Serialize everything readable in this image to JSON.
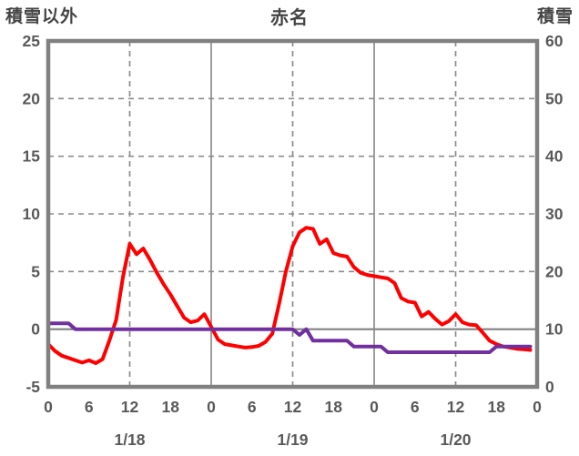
{
  "chart_data": {
    "type": "line",
    "title": "赤名",
    "left_axis": {
      "label": "積雪以外",
      "min": -5,
      "max": 25,
      "ticks": [
        25,
        20,
        15,
        10,
        5,
        0,
        -5
      ]
    },
    "right_axis": {
      "label": "積雪",
      "min": 0,
      "max": 60,
      "ticks": [
        60,
        50,
        40,
        30,
        20,
        10,
        0
      ]
    },
    "x_axis": {
      "total_hours": 72,
      "tick_step_hours": 6,
      "tick_labels": [
        "0",
        "6",
        "12",
        "18",
        "0",
        "6",
        "12",
        "18",
        "0",
        "6",
        "12",
        "18",
        "0"
      ],
      "day_labels": [
        "1/18",
        "1/19",
        "1/20"
      ],
      "grid_solid_at_hours": [
        24,
        48
      ],
      "grid_dashed_at_hours": [
        12,
        36,
        60
      ]
    },
    "grid": {
      "border_color": "#808080",
      "line_color": "#8c8c8c",
      "zero_line_color": "#808080"
    },
    "tick_label_color": "#595959",
    "series": [
      {
        "id": "red",
        "axis": "left",
        "color": "#ff0000",
        "values": [
          -1.3,
          -1.9,
          -2.3,
          -2.5,
          -2.7,
          -2.9,
          -2.7,
          -2.95,
          -2.6,
          -1.0,
          0.8,
          4.5,
          7.4,
          6.5,
          7.0,
          6.0,
          4.9,
          3.9,
          3.0,
          2.0,
          1.0,
          0.6,
          0.75,
          1.3,
          0.2,
          -0.9,
          -1.3,
          -1.4,
          -1.5,
          -1.6,
          -1.55,
          -1.45,
          -1.1,
          -0.4,
          2.2,
          5.0,
          7.2,
          8.4,
          8.8,
          8.7,
          7.4,
          7.8,
          6.6,
          6.4,
          6.3,
          5.4,
          4.9,
          4.7,
          4.6,
          4.5,
          4.4,
          4.0,
          2.7,
          2.4,
          2.3,
          1.1,
          1.5,
          0.9,
          0.4,
          0.7,
          1.3,
          0.6,
          0.4,
          0.35,
          -0.3,
          -1.0,
          -1.3,
          -1.5,
          -1.6,
          -1.7,
          -1.75,
          -1.8
        ]
      },
      {
        "id": "purple",
        "axis": "right",
        "color": "#7030a0",
        "values": [
          11,
          11,
          11,
          11,
          10,
          10,
          10,
          10,
          10,
          10,
          10,
          10,
          10,
          10,
          10,
          10,
          10,
          10,
          10,
          10,
          10,
          10,
          10,
          10,
          10,
          10,
          10,
          10,
          10,
          10,
          10,
          10,
          10,
          10,
          10,
          10,
          10,
          9,
          10,
          8,
          8,
          8,
          8,
          8,
          8,
          7,
          7,
          7,
          7,
          7,
          6,
          6,
          6,
          6,
          6,
          6,
          6,
          6,
          6,
          6,
          6,
          6,
          6,
          6,
          6,
          6,
          7,
          7,
          7,
          7,
          7,
          7
        ]
      }
    ]
  }
}
